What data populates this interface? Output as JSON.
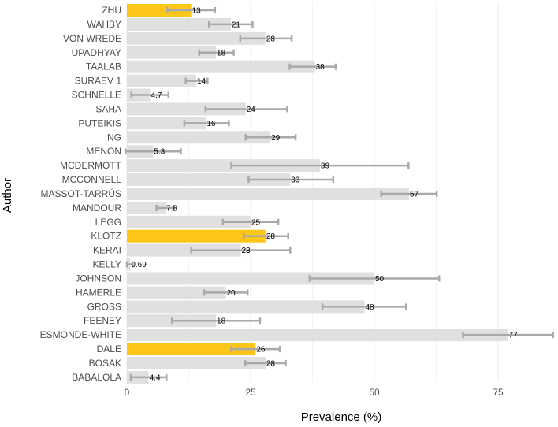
{
  "chart_data": {
    "type": "bar",
    "orientation": "horizontal",
    "title": "",
    "xlabel": "Prevalence (%)",
    "ylabel": "Author",
    "xlim": [
      0,
      87
    ],
    "xticks": [
      0,
      25,
      50,
      75
    ],
    "grid": true,
    "legend": "none",
    "colors": {
      "default_bar": "#e0e0e0",
      "highlight_bar": "#fdc619",
      "error_bar": "#a9a9a9",
      "grid": "#ebebeb"
    },
    "bars": [
      {
        "author": "ZHU",
        "value": 13,
        "label": "13",
        "ci_low": 8.2,
        "ci_high": 17.8,
        "highlight": true
      },
      {
        "author": "WAHBY",
        "value": 21,
        "label": "21",
        "ci_low": 16.6,
        "ci_high": 25.4,
        "highlight": false
      },
      {
        "author": "VON WREDE",
        "value": 28,
        "label": "28",
        "ci_low": 22.9,
        "ci_high": 33.3,
        "highlight": false
      },
      {
        "author": "UPADHYAY",
        "value": 18,
        "label": "18",
        "ci_low": 14.6,
        "ci_high": 21.6,
        "highlight": false
      },
      {
        "author": "TAALAB",
        "value": 38,
        "label": "38",
        "ci_low": 32.9,
        "ci_high": 42.2,
        "highlight": false
      },
      {
        "author": "SURAEV 1",
        "value": 14,
        "label": "14",
        "ci_low": 11.9,
        "ci_high": 16.3,
        "highlight": false
      },
      {
        "author": "SCHNELLE",
        "value": 4.7,
        "label": "4.7",
        "ci_low": 0.9,
        "ci_high": 8.4,
        "highlight": false
      },
      {
        "author": "SAHA",
        "value": 24,
        "label": "24",
        "ci_low": 15.9,
        "ci_high": 32.4,
        "highlight": false
      },
      {
        "author": "PUTEIKIS",
        "value": 16,
        "label": "16",
        "ci_low": 11.6,
        "ci_high": 20.6,
        "highlight": false
      },
      {
        "author": "NG",
        "value": 29,
        "label": "29",
        "ci_low": 24.0,
        "ci_high": 34.1,
        "highlight": false
      },
      {
        "author": "MENON",
        "value": 5.3,
        "label": "5.3",
        "ci_low": -0.3,
        "ci_high": 10.9,
        "highlight": false
      },
      {
        "author": "MCDERMOTT",
        "value": 39,
        "label": "39",
        "ci_low": 21.1,
        "ci_high": 56.9,
        "highlight": false
      },
      {
        "author": "MCCONNELL",
        "value": 33,
        "label": "33",
        "ci_low": 24.6,
        "ci_high": 41.7,
        "highlight": false
      },
      {
        "author": "MASSOT-TARRÚS",
        "value": 57,
        "label": "57",
        "ci_low": 51.4,
        "ci_high": 62.6,
        "highlight": false
      },
      {
        "author": "MANDOUR",
        "value": 7.8,
        "label": "7.8",
        "ci_low": 6.0,
        "ci_high": 9.5,
        "highlight": false
      },
      {
        "author": "LEGG",
        "value": 25,
        "label": "25",
        "ci_low": 19.4,
        "ci_high": 30.6,
        "highlight": false
      },
      {
        "author": "KLOTZ",
        "value": 28,
        "label": "28",
        "ci_low": 23.6,
        "ci_high": 32.6,
        "highlight": true
      },
      {
        "author": "KERAI",
        "value": 23,
        "label": "23",
        "ci_low": 13.0,
        "ci_high": 33.0,
        "highlight": false
      },
      {
        "author": "KELLY",
        "value": 0.69,
        "label": "0.69",
        "ci_low": 0.0,
        "ci_high": 1.2,
        "highlight": false
      },
      {
        "author": "JOHNSON",
        "value": 50,
        "label": "50",
        "ci_low": 36.9,
        "ci_high": 63.1,
        "highlight": false
      },
      {
        "author": "HAMERLE",
        "value": 20,
        "label": "20",
        "ci_low": 15.6,
        "ci_high": 24.4,
        "highlight": false
      },
      {
        "author": "GROSS",
        "value": 48,
        "label": "48",
        "ci_low": 39.5,
        "ci_high": 56.4,
        "highlight": false
      },
      {
        "author": "FEENEY",
        "value": 18,
        "label": "18",
        "ci_low": 9.1,
        "ci_high": 26.9,
        "highlight": false
      },
      {
        "author": "ESMONDE-WHITE",
        "value": 77,
        "label": "77",
        "ci_low": 67.9,
        "ci_high": 86.1,
        "highlight": false
      },
      {
        "author": "DALE",
        "value": 26,
        "label": "26",
        "ci_low": 21.1,
        "ci_high": 30.9,
        "highlight": true
      },
      {
        "author": "BOSAK",
        "value": 28,
        "label": "28",
        "ci_low": 23.9,
        "ci_high": 32.1,
        "highlight": false
      },
      {
        "author": "BABALOLA",
        "value": 4.4,
        "label": "4.4",
        "ci_low": 0.8,
        "ci_high": 8.0,
        "highlight": false
      }
    ]
  }
}
